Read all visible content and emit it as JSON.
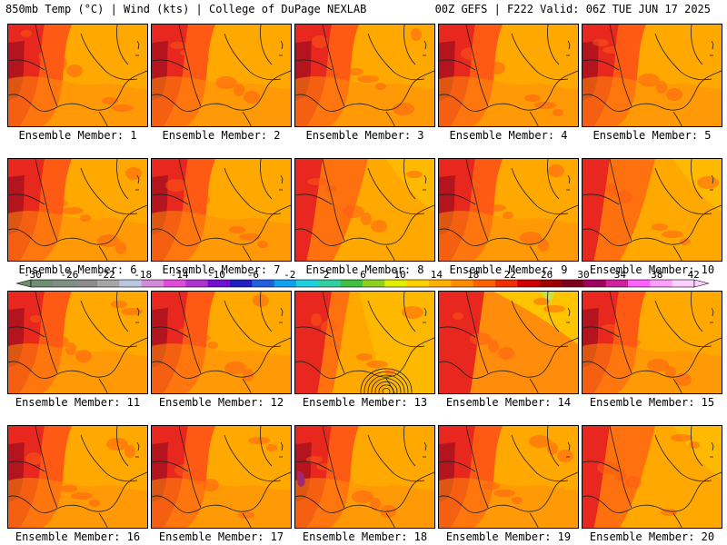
{
  "header": {
    "left": "850mb Temp (°C) | Wind (kts) | College of DuPage NEXLAB",
    "right": "00Z GEFS | F222 Valid: 06Z TUE JUN 17 2025"
  },
  "members": [
    {
      "label": "Ensemble Member: 1",
      "style": "hot-west"
    },
    {
      "label": "Ensemble Member: 2",
      "style": "hot-west"
    },
    {
      "label": "Ensemble Member: 3",
      "style": "hot-west"
    },
    {
      "label": "Ensemble Member: 4",
      "style": "hot-west"
    },
    {
      "label": "Ensemble Member: 5",
      "style": "hot-west"
    },
    {
      "label": "Ensemble Member: 6",
      "style": "hot-west"
    },
    {
      "label": "Ensemble Member: 7",
      "style": "hot-west"
    },
    {
      "label": "Ensemble Member: 8",
      "style": "mild"
    },
    {
      "label": "Ensemble Member: 9",
      "style": "hot-west"
    },
    {
      "label": "Ensemble Member: 10",
      "style": "mild"
    },
    {
      "label": "Ensemble Member: 11",
      "style": "hot-west"
    },
    {
      "label": "Ensemble Member: 12",
      "style": "hot-west"
    },
    {
      "label": "Ensemble Member: 13",
      "style": "storm"
    },
    {
      "label": "Ensemble Member: 14",
      "style": "cool-north"
    },
    {
      "label": "Ensemble Member: 15",
      "style": "hot-west"
    },
    {
      "label": "Ensemble Member: 16",
      "style": "hot-west"
    },
    {
      "label": "Ensemble Member: 17",
      "style": "hot-west"
    },
    {
      "label": "Ensemble Member: 18",
      "style": "hot-west"
    },
    {
      "label": "Ensemble Member: 19",
      "style": "hot-west"
    },
    {
      "label": "Ensemble Member: 20",
      "style": "mild"
    }
  ],
  "colorbar": {
    "ticks": [
      "-30",
      "-26",
      "-22",
      "-18",
      "-14",
      "-10",
      "-6",
      "-2",
      "2",
      "6",
      "10",
      "14",
      "18",
      "22",
      "26",
      "30",
      "34",
      "38",
      "42"
    ],
    "colors": [
      "#6f8f73",
      "#7e8e80",
      "#8b8b8b",
      "#a6a6a6",
      "#b8c8e0",
      "#d08ad8",
      "#e14bd9",
      "#b030d0",
      "#7010d0",
      "#2020c0",
      "#2060e0",
      "#10a0f0",
      "#20d0e0",
      "#30d0a0",
      "#40c040",
      "#90d020",
      "#e0f000",
      "#ffd000",
      "#ffb000",
      "#ff8c00",
      "#ff6000",
      "#f03000",
      "#d00000",
      "#a00000",
      "#800020",
      "#a00060",
      "#d020a0",
      "#ff60ff",
      "#ffa0ff",
      "#ffd0ff"
    ]
  },
  "palette": {
    "hot": "#e8281e",
    "warm": "#ff5a14",
    "orange": "#ff8c0a",
    "light": "#ffa800",
    "yellow": "#ffc400",
    "darkred": "#b4141e",
    "magenta": "#a0286e"
  }
}
